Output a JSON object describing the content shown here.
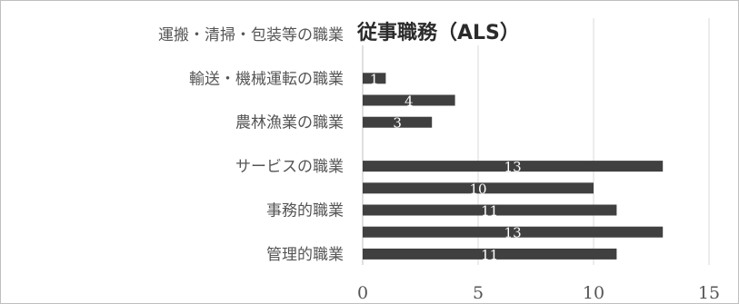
{
  "chart_data": {
    "type": "bar",
    "orientation": "horizontal",
    "title": "従事職務（ALS）",
    "categories": [
      "管理的職業",
      "",
      "事務的職業",
      "",
      "サービスの職業",
      "",
      "農林漁業の職業",
      "",
      "輸送・機械運転の職業",
      "",
      "運搬・清掃・包装等の職業"
    ],
    "values": [
      11,
      13,
      11,
      10,
      13,
      null,
      3,
      4,
      1,
      null,
      null
    ],
    "value_labels": [
      "11",
      "13",
      "11",
      "10",
      "13",
      "",
      "3",
      "4",
      "1",
      "",
      ""
    ],
    "xticks": [
      "0",
      "5",
      "10",
      "15"
    ],
    "xlim": [
      0,
      15
    ],
    "grid": true,
    "bar_color": "#404040"
  }
}
